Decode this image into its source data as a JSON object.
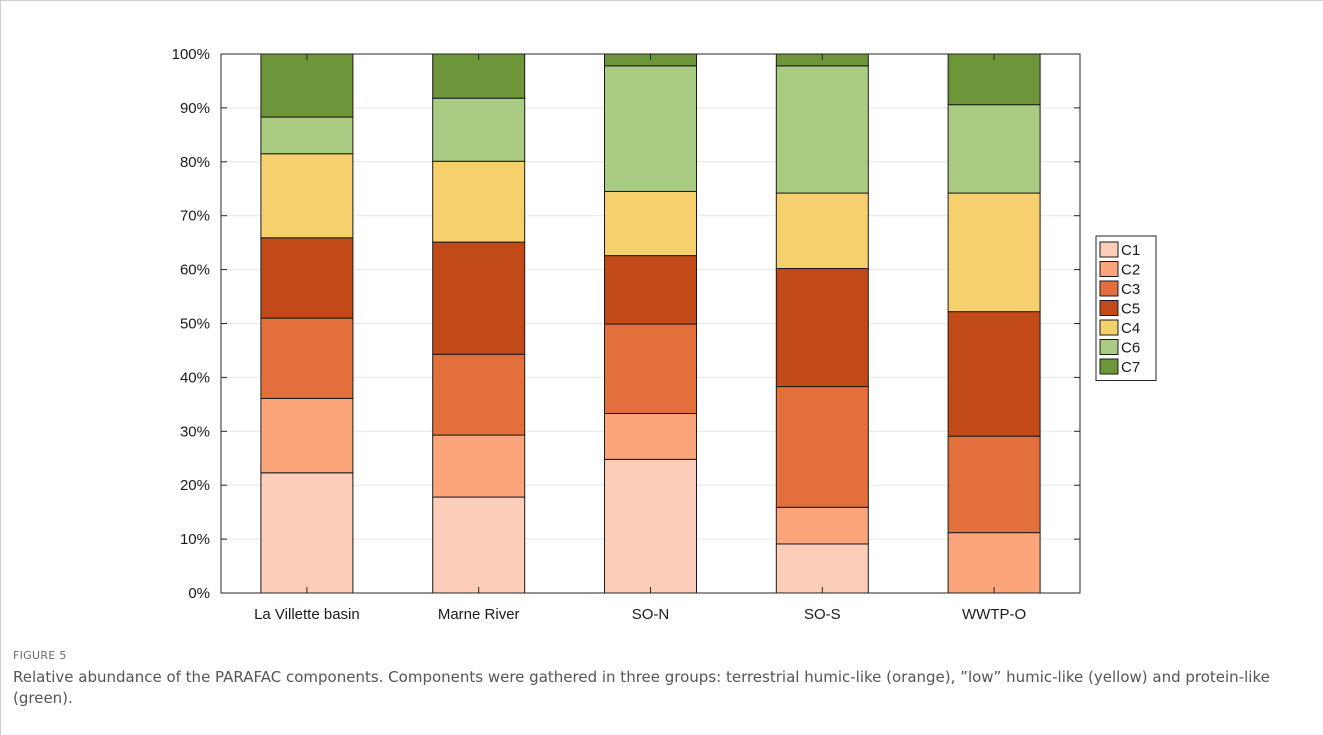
{
  "figure": {
    "label": "FIGURE 5",
    "caption": "Relative abundance of the PARAFAC components. Components were gathered in three groups: terrestrial humic-like (orange), ”low” humic-like (yellow) and protein-like (green)."
  },
  "chart_data": {
    "type": "bar",
    "stacked": true,
    "categories": [
      "La Villette basin",
      "Marne River",
      "SO-N",
      "SO-S",
      "WWTP-O"
    ],
    "series": [
      {
        "name": "C1",
        "color": "#fccdb9",
        "values": [
          22.3,
          17.8,
          24.8,
          9.1,
          0.0
        ]
      },
      {
        "name": "C2",
        "color": "#fca57a",
        "values": [
          13.8,
          11.5,
          8.5,
          6.8,
          11.2
        ]
      },
      {
        "name": "C3",
        "color": "#e3703c",
        "values": [
          14.9,
          15.0,
          16.6,
          22.4,
          17.9
        ]
      },
      {
        "name": "C5",
        "color": "#c24a18",
        "values": [
          14.9,
          20.8,
          12.7,
          21.9,
          23.1
        ]
      },
      {
        "name": "C4",
        "color": "#f7d06e",
        "values": [
          15.6,
          15.0,
          11.9,
          14.0,
          22.0
        ]
      },
      {
        "name": "C6",
        "color": "#aacb82",
        "values": [
          6.8,
          11.7,
          23.3,
          23.6,
          16.4
        ]
      },
      {
        "name": "C7",
        "color": "#6d953a",
        "values": [
          11.7,
          8.2,
          2.2,
          2.2,
          9.4
        ]
      }
    ],
    "ylim": [
      0,
      100
    ],
    "yticks": [
      "0%",
      "10%",
      "20%",
      "30%",
      "40%",
      "50%",
      "60%",
      "70%",
      "80%",
      "90%",
      "100%"
    ],
    "grid": "horizontal",
    "legend": "right",
    "legend_order": [
      "C1",
      "C2",
      "C3",
      "C5",
      "C4",
      "C6",
      "C7"
    ],
    "title": "",
    "xlabel": "",
    "ylabel": ""
  }
}
